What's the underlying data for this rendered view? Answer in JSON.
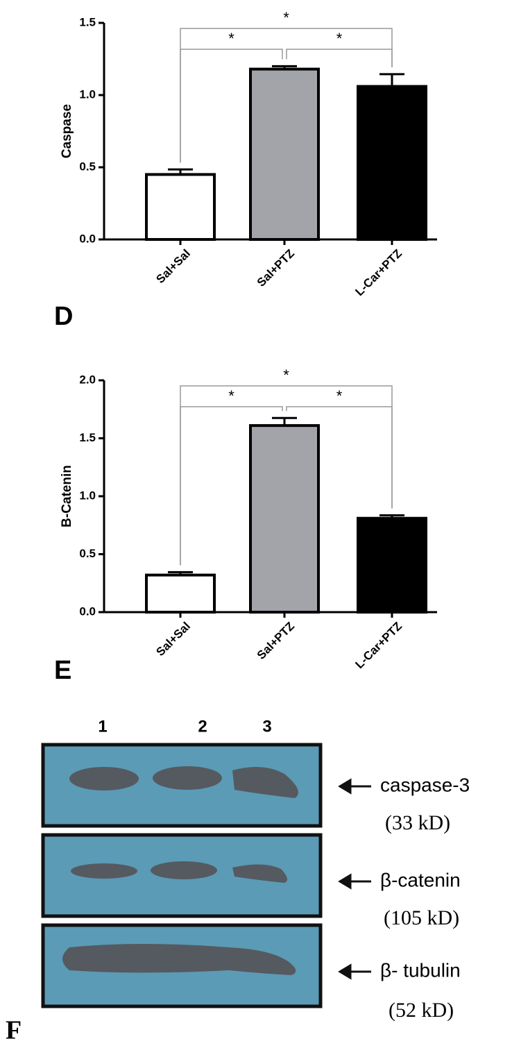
{
  "chart_data": [
    {
      "type": "bar",
      "panel_label": "D",
      "ylabel": "Caspase",
      "categories": [
        "Sal+Sal",
        "Sal+PTZ",
        "L-Car+PTZ"
      ],
      "values": [
        0.45,
        1.18,
        1.06
      ],
      "errors": [
        0.035,
        0.02,
        0.085
      ],
      "colors": [
        "#ffffff",
        "#a3a3aa",
        "#000000"
      ],
      "ylim": [
        0,
        1.5
      ],
      "yticks": [
        {
          "value": 0,
          "label": "0.0"
        },
        0.5,
        {
          "value": 1,
          "label": "1.0"
        },
        1.5
      ],
      "significance": [
        {
          "pair": [
            0,
            1
          ],
          "text": "*"
        },
        {
          "pair": [
            1,
            2
          ],
          "text": "*"
        },
        {
          "pair": [
            0,
            2
          ],
          "text": "*"
        }
      ]
    },
    {
      "type": "bar",
      "panel_label": "E",
      "ylabel": "B-Catenin",
      "categories": [
        "Sal+Sal",
        "Sal+PTZ",
        "L-Car+PTZ"
      ],
      "values": [
        0.32,
        1.61,
        0.81
      ],
      "errors": [
        0.025,
        0.065,
        0.025
      ],
      "colors": [
        "#ffffff",
        "#a3a3aa",
        "#000000"
      ],
      "ylim": [
        0,
        2
      ],
      "yticks": [
        {
          "value": 0,
          "label": "0.0"
        },
        0.5,
        {
          "value": 1,
          "label": "1.0"
        },
        1.5,
        {
          "value": 2,
          "label": "2.0"
        }
      ],
      "significance": [
        {
          "pair": [
            0,
            1
          ],
          "text": "*"
        },
        {
          "pair": [
            1,
            2
          ],
          "text": "*"
        },
        {
          "pair": [
            0,
            2
          ],
          "text": "*"
        }
      ]
    }
  ],
  "blot": {
    "panel_label": "F",
    "lanes": [
      "1",
      "2",
      "3"
    ],
    "bands": [
      {
        "name": "caspase-3",
        "size": "(33 kD)"
      },
      {
        "name": "β-catenin",
        "size": "(105 kD)"
      },
      {
        "name": "β- tubulin",
        "size": "(52 kD)"
      }
    ]
  }
}
